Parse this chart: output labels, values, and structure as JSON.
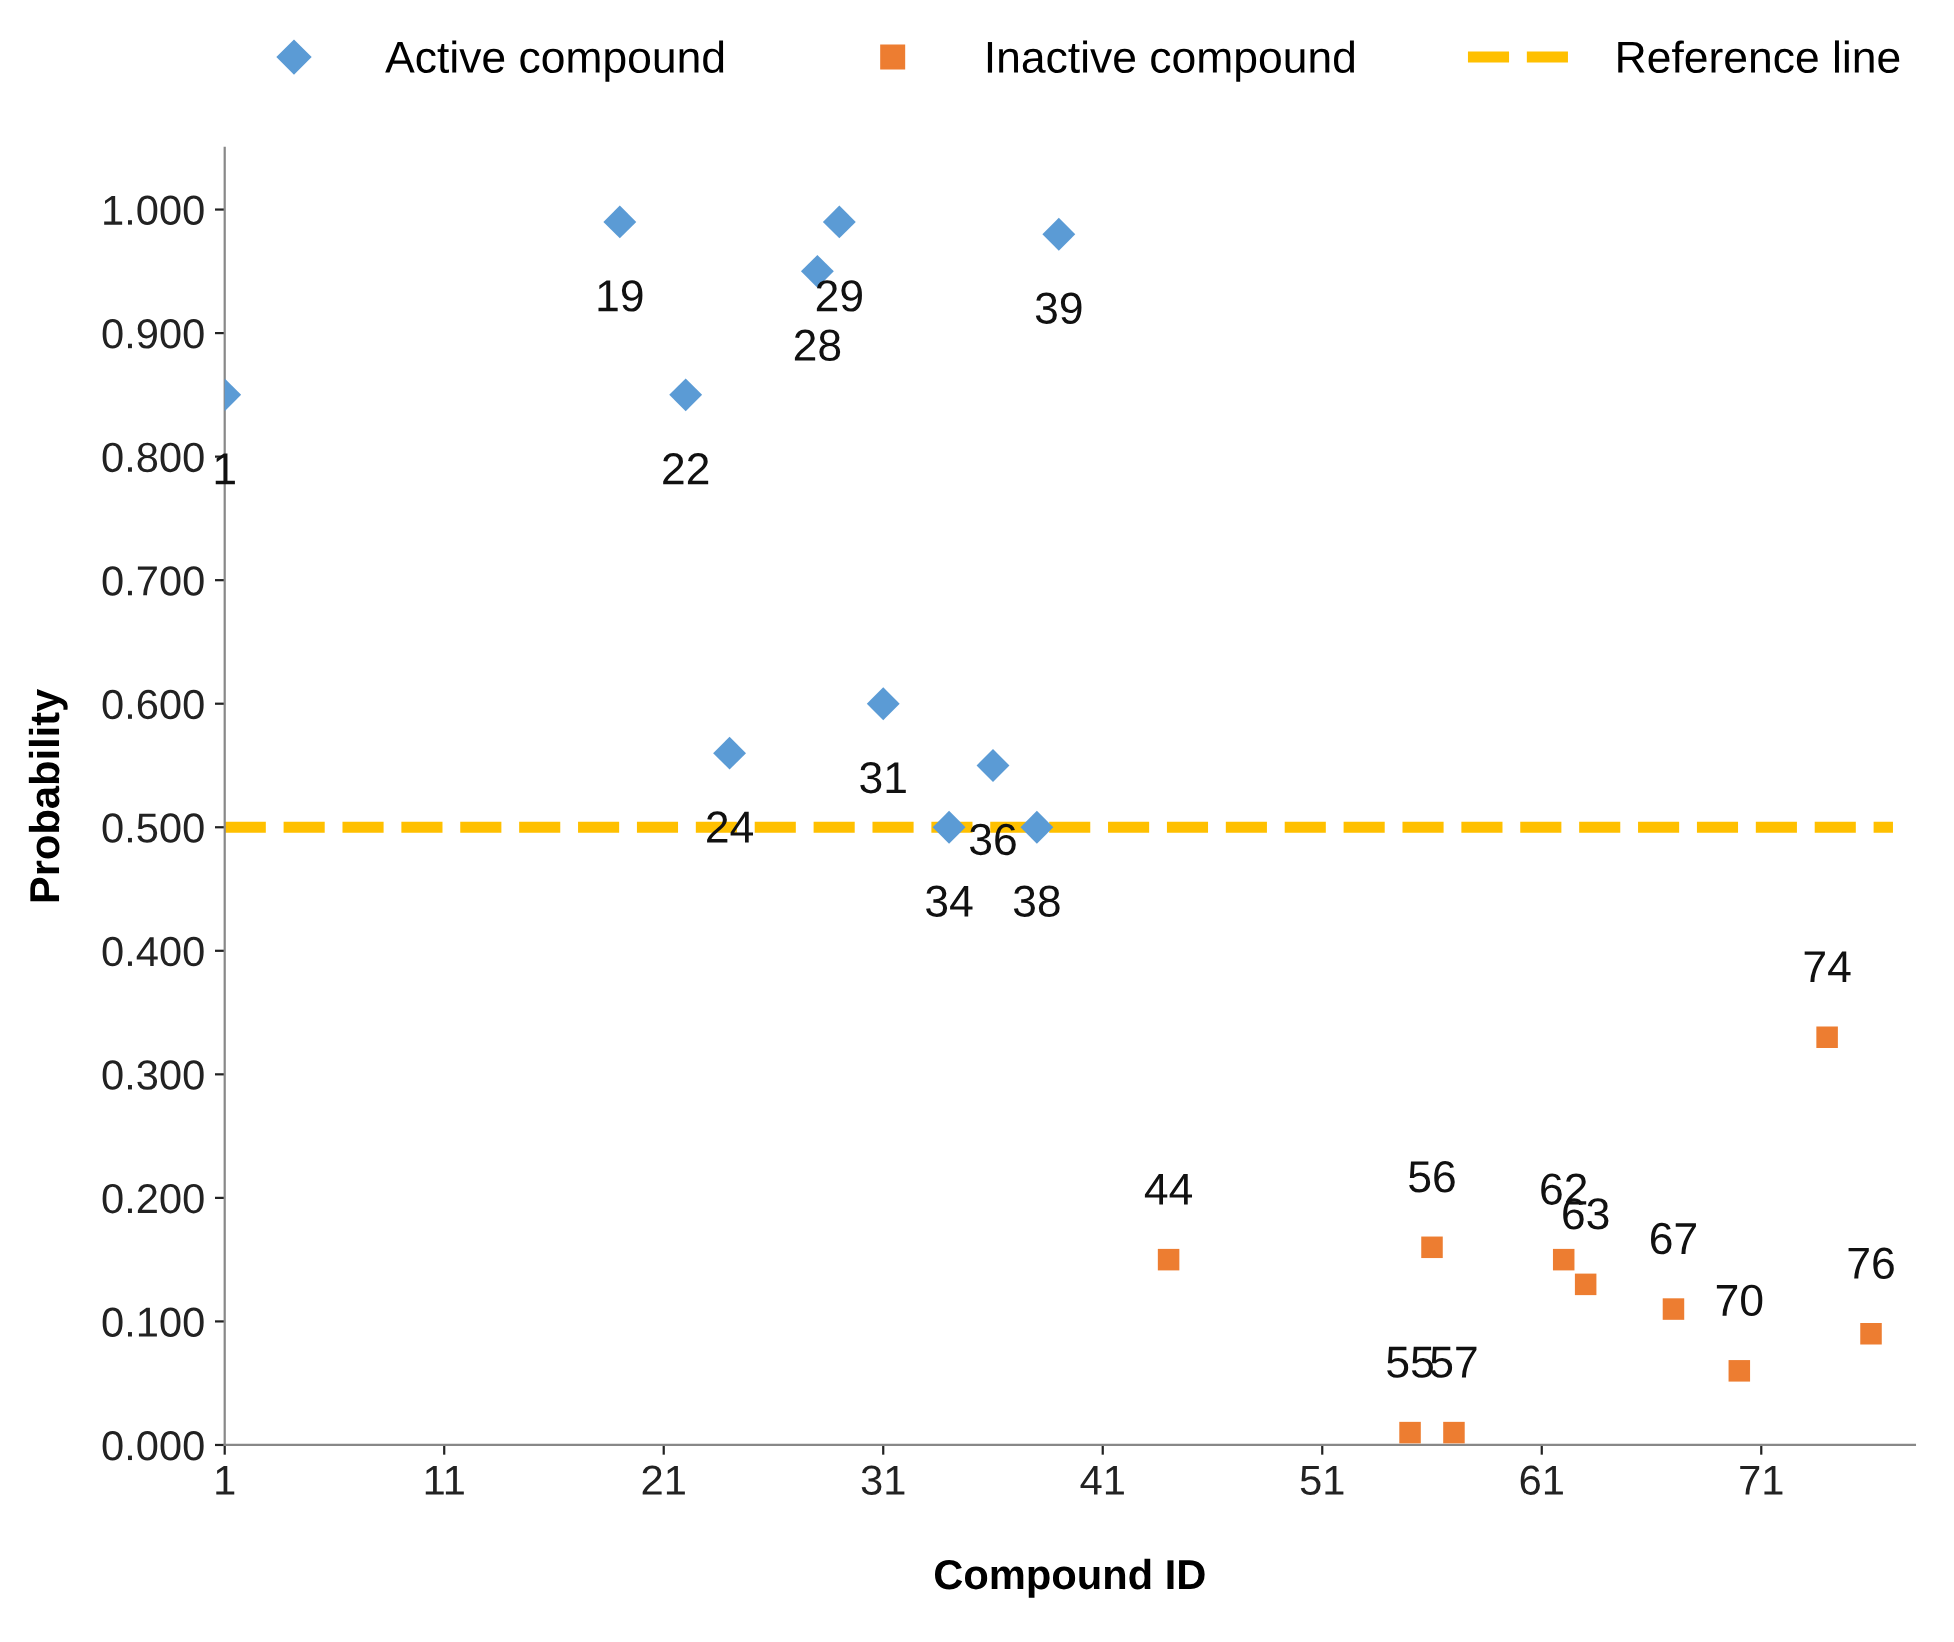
{
  "chart_data": {
    "type": "scatter",
    "xlabel": "Compound ID",
    "ylabel": "Probability",
    "xlim": [
      1,
      78
    ],
    "xticks": [
      1,
      11,
      21,
      31,
      41,
      51,
      61,
      71
    ],
    "ylim": [
      0,
      1.05
    ],
    "yticks": [
      {
        "value": 0,
        "label": "0.000"
      },
      {
        "value": 0.1,
        "label": "0.100"
      },
      {
        "value": 0.2,
        "label": "0.200"
      },
      {
        "value": 0.3,
        "label": "0.300"
      },
      {
        "value": 0.4,
        "label": "0.400"
      },
      {
        "value": 0.5,
        "label": "0.500"
      },
      {
        "value": 0.6,
        "label": "0.600"
      },
      {
        "value": 0.7,
        "label": "0.700"
      },
      {
        "value": 0.8,
        "label": "0.800"
      },
      {
        "value": 0.9,
        "label": "0.900"
      },
      {
        "value": 1.0,
        "label": "1.000"
      }
    ],
    "grid": false,
    "legend": "top",
    "series": [
      {
        "name": "Active compound",
        "color": "#5b9bd5",
        "marker": "diamond",
        "x": [
          1,
          19,
          22,
          24,
          28,
          29,
          31,
          34,
          36,
          38,
          39
        ],
        "values": [
          0.85,
          0.99,
          0.85,
          0.56,
          0.95,
          0.99,
          0.6,
          0.5,
          0.55,
          0.5,
          0.98
        ]
      },
      {
        "name": "Inactive compound",
        "color": "#ed7d31",
        "marker": "square",
        "x": [
          44,
          55,
          56,
          57,
          62,
          63,
          67,
          70,
          74,
          76
        ],
        "values": [
          0.15,
          0.01,
          0.16,
          0.01,
          0.15,
          0.13,
          0.11,
          0.06,
          0.33,
          0.09
        ]
      },
      {
        "name": "Reference line",
        "type": "line",
        "color": "#ffc000",
        "line_style": "dashed",
        "marker": "none",
        "x": [
          1,
          77
        ],
        "values": [
          0.5,
          0.5
        ]
      }
    ],
    "annotations": [
      {
        "text": "1",
        "x": 1,
        "y": 0.85
      },
      {
        "text": "19",
        "x": 19,
        "y": 0.99
      },
      {
        "text": "22",
        "x": 22,
        "y": 0.85
      },
      {
        "text": "24",
        "x": 24,
        "y": 0.56
      },
      {
        "text": "28",
        "x": 28,
        "y": 0.95
      },
      {
        "text": "29",
        "x": 29,
        "y": 0.99
      },
      {
        "text": "31",
        "x": 31,
        "y": 0.6
      },
      {
        "text": "34",
        "x": 34,
        "y": 0.5
      },
      {
        "text": "36",
        "x": 36,
        "y": 0.55
      },
      {
        "text": "38",
        "x": 38,
        "y": 0.5
      },
      {
        "text": "39",
        "x": 39,
        "y": 0.98
      },
      {
        "text": "44",
        "x": 44,
        "y": 0.15
      },
      {
        "text": "55",
        "x": 55,
        "y": 0.01
      },
      {
        "text": "56",
        "x": 56,
        "y": 0.16
      },
      {
        "text": "57",
        "x": 57,
        "y": 0.01
      },
      {
        "text": "62",
        "x": 62,
        "y": 0.15
      },
      {
        "text": "63",
        "x": 63,
        "y": 0.13
      },
      {
        "text": "67",
        "x": 67,
        "y": 0.11
      },
      {
        "text": "70",
        "x": 70,
        "y": 0.06
      },
      {
        "text": "74",
        "x": 74,
        "y": 0.33
      },
      {
        "text": "76",
        "x": 76,
        "y": 0.09
      }
    ]
  }
}
